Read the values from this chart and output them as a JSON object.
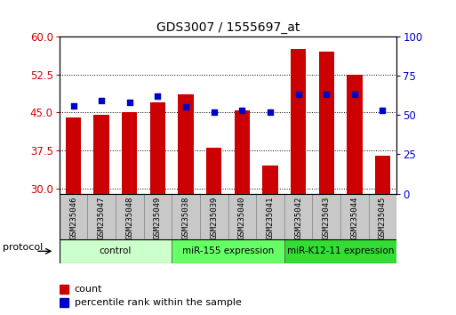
{
  "title": "GDS3007 / 1555697_at",
  "samples": [
    "GSM235046",
    "GSM235047",
    "GSM235048",
    "GSM235049",
    "GSM235038",
    "GSM235039",
    "GSM235040",
    "GSM235041",
    "GSM235042",
    "GSM235043",
    "GSM235044",
    "GSM235045"
  ],
  "count_values": [
    44.0,
    44.5,
    45.0,
    47.0,
    48.5,
    38.0,
    45.5,
    34.5,
    57.5,
    57.0,
    52.5,
    36.5
  ],
  "percentile_values": [
    56,
    59,
    58,
    62,
    55,
    52,
    53,
    52,
    63,
    63,
    63,
    53
  ],
  "ylim_left": [
    29,
    60
  ],
  "ylim_right": [
    0,
    100
  ],
  "yticks_left": [
    30,
    37.5,
    45,
    52.5,
    60
  ],
  "yticks_right": [
    0,
    25,
    50,
    75,
    100
  ],
  "bar_color": "#cc0000",
  "dot_color": "#0000cc",
  "groups": [
    {
      "label": "control",
      "start": 0,
      "end": 3,
      "color": "#ccffcc"
    },
    {
      "label": "miR-155 expression",
      "start": 4,
      "end": 7,
      "color": "#66ff66"
    },
    {
      "label": "miR-K12-11 expression",
      "start": 8,
      "end": 11,
      "color": "#33dd33"
    }
  ],
  "protocol_label": "protocol",
  "legend_count_label": "count",
  "legend_pct_label": "percentile rank within the sample",
  "bar_color_legend": "#cc0000",
  "dot_color_legend": "#0000cc",
  "tick_label_color_left": "#cc0000",
  "tick_label_color_right": "#0000cc",
  "sample_box_color": "#c8c8c8",
  "sample_box_edge": "#888888"
}
